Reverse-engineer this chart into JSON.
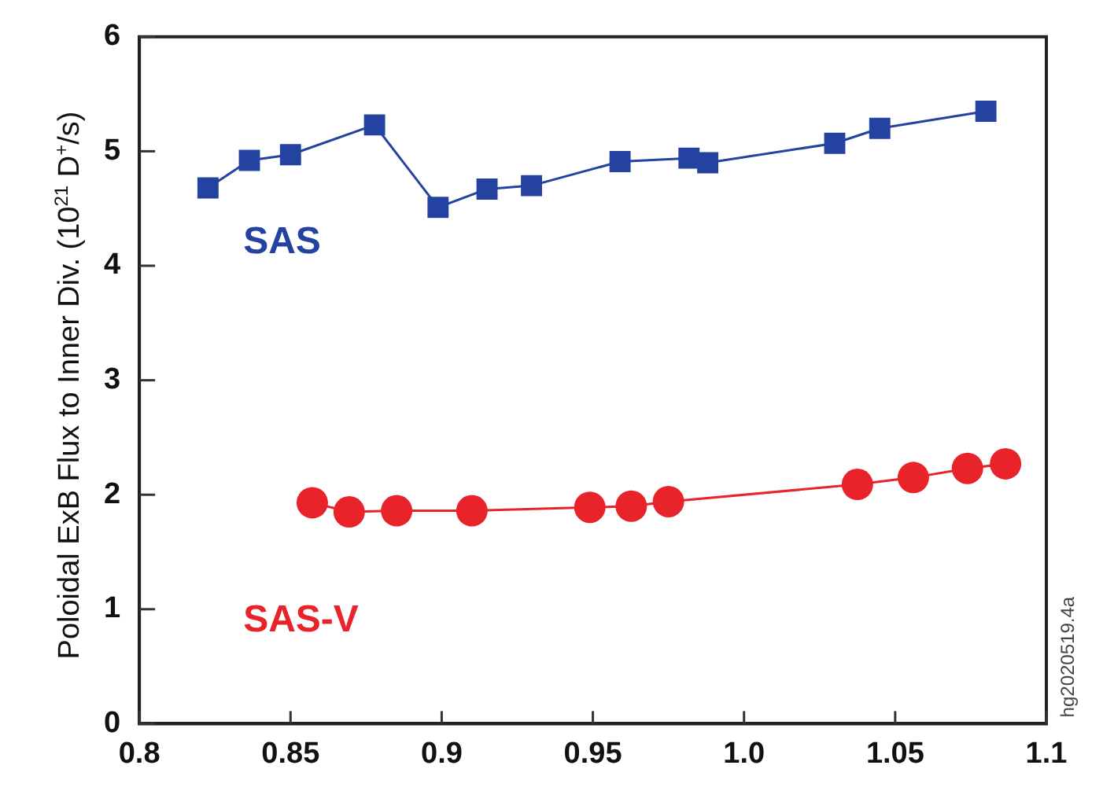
{
  "chart_data": {
    "type": "line",
    "ylabel": "Poloidal ExB Flux to Inner Div. (10$^{21}$ D$^{+}$/s)",
    "xlim": [
      0.8,
      1.1
    ],
    "xticks": [
      0.8,
      0.85,
      0.9,
      0.95,
      {
        "value": 1.0,
        "label": "1.0"
      },
      1.05,
      1.1
    ],
    "ylim": [
      0,
      6
    ],
    "yticks": [
      0,
      1,
      2,
      3,
      4,
      5,
      6
    ],
    "grid": false,
    "legend": false,
    "series": [
      {
        "name": "SAS",
        "color": "#2442a0",
        "marker": "square",
        "x": [
          0.8227,
          0.8364,
          0.85,
          0.8778,
          0.8988,
          0.915,
          0.9297,
          0.959,
          0.9818,
          0.988,
          1.03,
          1.0449,
          1.08
        ],
        "values": [
          4.68,
          4.92,
          4.97,
          5.23,
          4.51,
          4.67,
          4.7,
          4.91,
          4.94,
          4.9,
          5.07,
          5.2,
          5.35
        ]
      },
      {
        "name": "SAS-V",
        "color": "#e8232a",
        "marker": "circle",
        "x": [
          0.8572,
          0.8694,
          0.8851,
          0.91,
          0.949,
          0.9627,
          0.975,
          1.0375,
          1.056,
          1.0739,
          1.0865
        ],
        "values": [
          1.93,
          1.85,
          1.86,
          1.86,
          1.89,
          1.9,
          1.94,
          2.09,
          2.15,
          2.23,
          2.27
        ]
      }
    ],
    "annotations": [
      "hg2020519.4a"
    ]
  }
}
